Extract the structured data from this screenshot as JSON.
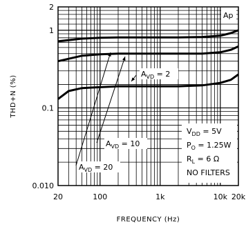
{
  "chart_data": {
    "type": "line",
    "title": "",
    "xlabel": "FREQUENCY (Hz)",
    "ylabel": "THD+N (%)",
    "x_scale": "log",
    "y_scale": "log",
    "xlim": [
      20,
      20000
    ],
    "ylim": [
      0.01,
      2
    ],
    "grid": true,
    "x_ticks": [
      {
        "value": 20,
        "label": "20"
      },
      {
        "value": 100,
        "label": "100"
      },
      {
        "value": 1000,
        "label": "1k"
      },
      {
        "value": 10000,
        "label": "10k"
      },
      {
        "value": 20000,
        "label": "20k"
      }
    ],
    "y_ticks": [
      {
        "value": 0.01,
        "label": "0.010"
      },
      {
        "value": 0.1,
        "label": "0.1"
      },
      {
        "value": 1,
        "label": "1"
      },
      {
        "value": 2,
        "label": "2"
      }
    ],
    "series": [
      {
        "x": [
          20,
          50,
          100,
          200,
          500,
          1000,
          2000,
          5000,
          10000,
          15000,
          20000
        ],
        "y": [
          0.72,
          0.78,
          0.8,
          0.81,
          0.81,
          0.81,
          0.81,
          0.82,
          0.85,
          0.92,
          1.0
        ]
      },
      {
        "x": [
          20,
          50,
          100,
          200,
          500,
          1000,
          2000,
          5000,
          10000,
          15000,
          20000
        ],
        "y": [
          0.4,
          0.47,
          0.49,
          0.5,
          0.5,
          0.5,
          0.5,
          0.5,
          0.52,
          0.56,
          0.62
        ]
      },
      {
        "x": [
          20,
          30,
          50,
          100,
          200,
          500,
          1000,
          2000,
          5000,
          10000,
          15000,
          20000
        ],
        "y": [
          0.13,
          0.165,
          0.18,
          0.185,
          0.19,
          0.19,
          0.19,
          0.19,
          0.195,
          0.21,
          0.23,
          0.27
        ]
      }
    ],
    "annotations": {
      "corner": "Ap",
      "avd2": {
        "main": "A",
        "sub": "VD",
        "rest": " = 2"
      },
      "avd10": {
        "main": "A",
        "sub": "VD",
        "rest": " = 10"
      },
      "avd20": {
        "main": "A",
        "sub": "VD",
        "rest": " = 20"
      },
      "conditions": [
        {
          "main": "V",
          "sub": "DD",
          "rest": " = 5V"
        },
        {
          "main": "P",
          "sub": "O",
          "rest": " = 1.25W"
        },
        {
          "main": "R",
          "sub": "L",
          "rest": " = 6 Ω"
        },
        {
          "main": "NO FILTERS",
          "sub": "",
          "rest": ""
        }
      ]
    }
  }
}
